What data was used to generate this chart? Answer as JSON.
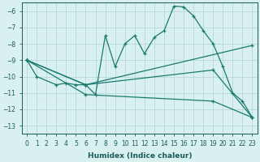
{
  "xlabel": "Humidex (Indice chaleur)",
  "background_color": "#d8f0f0",
  "grid_color": "#b8d8d8",
  "line_color": "#1a7a6e",
  "xlim": [
    -0.5,
    23.5
  ],
  "ylim": [
    -13.5,
    -5.5
  ],
  "yticks": [
    -13,
    -12,
    -11,
    -10,
    -9,
    -8,
    -7,
    -6
  ],
  "xticks": [
    0,
    1,
    2,
    3,
    4,
    5,
    6,
    7,
    8,
    9,
    10,
    11,
    12,
    13,
    14,
    15,
    16,
    17,
    18,
    19,
    20,
    21,
    22,
    23
  ],
  "line1_x": [
    0,
    1,
    3,
    4,
    5,
    6,
    7,
    8,
    9,
    10,
    11,
    12,
    13,
    14,
    15,
    16,
    17,
    18,
    19,
    20,
    21,
    22,
    23
  ],
  "line1_y": [
    -9.0,
    -10.0,
    -10.5,
    -10.4,
    -10.5,
    -10.5,
    -11.1,
    -7.5,
    -9.4,
    -8.0,
    -7.5,
    -8.6,
    -7.6,
    -7.2,
    -5.7,
    -5.75,
    -6.3,
    -7.2,
    -8.0,
    -9.4,
    -11.0,
    -11.5,
    -12.5
  ],
  "line2_x": [
    0,
    6,
    23
  ],
  "line2_y": [
    -9.0,
    -10.5,
    -8.1
  ],
  "line3_x": [
    0,
    6,
    19,
    23
  ],
  "line3_y": [
    -9.0,
    -10.5,
    -9.6,
    -12.5
  ],
  "line4_x": [
    0,
    6,
    19,
    23
  ],
  "line4_y": [
    -9.0,
    -11.1,
    -11.5,
    -12.5
  ],
  "font_color": "#1a5a5a",
  "marker": "+"
}
